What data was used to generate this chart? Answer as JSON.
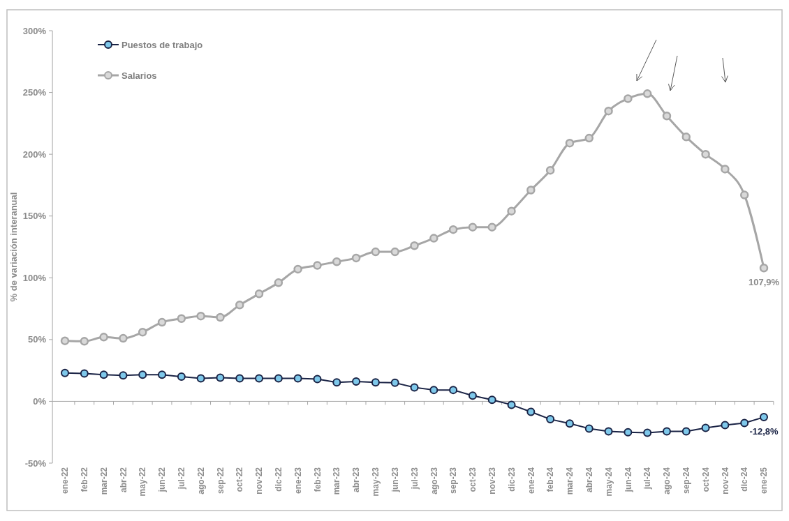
{
  "chart_data": {
    "type": "line",
    "ylabel": "% de variación interanual",
    "categories": [
      "ene-22",
      "feb-22",
      "mar-22",
      "abr-22",
      "may-22",
      "jun-22",
      "jul-22",
      "ago-22",
      "sep-22",
      "oct-22",
      "nov-22",
      "dic-22",
      "ene-23",
      "feb-23",
      "mar-23",
      "abr-23",
      "may-23",
      "jun-23",
      "jul-23",
      "ago-23",
      "sep-23",
      "oct-23",
      "nov-23",
      "dic-23",
      "ene-24",
      "feb-24",
      "mar-24",
      "abr-24",
      "may-24",
      "jun-24",
      "jul-24",
      "ago-24",
      "sep-24",
      "oct-24",
      "nov-24",
      "dic-24",
      "ene-25"
    ],
    "series": [
      {
        "name": "Puestos de trabajo",
        "color": "#1a2345",
        "values": [
          23,
          22.6,
          21.5,
          21,
          21.5,
          21.5,
          20,
          18.6,
          19.2,
          18.6,
          18.6,
          18.6,
          18.6,
          18,
          15.3,
          16,
          15.3,
          15,
          11.3,
          9.2,
          9.2,
          4.6,
          1.2,
          -2.8,
          -8.5,
          -14.5,
          -18,
          -22,
          -24.3,
          -25,
          -25.4,
          -24.3,
          -24.3,
          -21.5,
          -19.2,
          -17.5,
          -12.8
        ],
        "value_labels": [
          null,
          null,
          null,
          null,
          null,
          null,
          null,
          null,
          null,
          null,
          null,
          null,
          null,
          null,
          null,
          null,
          null,
          null,
          null,
          null,
          null,
          null,
          null,
          null,
          null,
          null,
          null,
          null,
          null,
          null,
          null,
          null,
          null,
          null,
          null,
          null,
          "-12,8%"
        ]
      },
      {
        "name": "Salarios",
        "color": "#a6a6a6",
        "values": [
          49,
          48.6,
          52,
          51,
          56,
          64,
          67,
          69,
          68,
          78,
          87,
          96,
          107,
          110,
          113,
          116,
          121,
          121,
          126,
          132,
          139,
          141,
          141,
          154,
          171,
          187,
          209,
          213,
          235,
          245,
          249,
          231,
          214,
          200,
          188,
          167,
          107.9
        ],
        "value_labels": [
          null,
          null,
          null,
          null,
          null,
          null,
          null,
          null,
          null,
          null,
          null,
          null,
          null,
          null,
          null,
          null,
          null,
          null,
          null,
          null,
          null,
          null,
          null,
          null,
          null,
          null,
          null,
          null,
          null,
          null,
          null,
          null,
          null,
          null,
          null,
          null,
          "107,9%"
        ]
      }
    ],
    "ylim": [
      -50,
      300
    ],
    "yticks": [
      {
        "value": -50,
        "label": "-50%"
      },
      {
        "value": 0,
        "label": "0%"
      },
      {
        "value": 50,
        "label": "50%"
      },
      {
        "value": 100,
        "label": "100%"
      },
      {
        "value": 150,
        "label": "150%"
      },
      {
        "value": 200,
        "label": "200%"
      },
      {
        "value": 250,
        "label": "250%"
      },
      {
        "value": 300,
        "label": "300%"
      }
    ],
    "legend": "top left",
    "marker": "circle",
    "line_style": "solid"
  }
}
